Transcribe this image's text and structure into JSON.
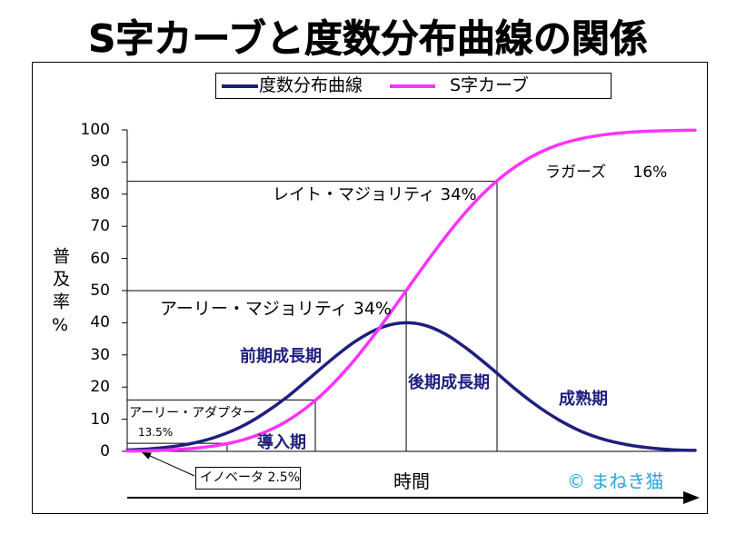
{
  "chart_data": {
    "type": "line",
    "title": "S字カーブと度数分布曲線の関係",
    "xlabel": "時間",
    "ylabel": "普及率%",
    "ylim": [
      0,
      100
    ],
    "yticks": [
      0,
      10,
      20,
      30,
      40,
      50,
      60,
      70,
      80,
      90,
      100
    ],
    "grid": false,
    "legend": "top",
    "series": [
      {
        "name": "度数分布曲線",
        "color": "#1f1f7f",
        "values": [
          0.4,
          0.8,
          1.5,
          2.7,
          4.7,
          7.6,
          11.7,
          16.7,
          22.6,
          28.6,
          34.0,
          38.0,
          39.9,
          39.4,
          36.5,
          31.7,
          26.0,
          19.9,
          14.4,
          9.8,
          6.2,
          3.7,
          2.1,
          1.1,
          0.5,
          0.3
        ]
      },
      {
        "name": "S字カーブ",
        "color": "#ff33ff",
        "values": [
          0.1,
          0.2,
          0.5,
          1.0,
          1.9,
          3.4,
          5.8,
          9.3,
          14.2,
          20.6,
          28.4,
          37.4,
          47.2,
          57.1,
          66.6,
          75.2,
          82.4,
          88.1,
          92.4,
          95.4,
          97.3,
          98.5,
          99.2,
          99.6,
          99.8,
          99.9
        ]
      }
    ],
    "segments": [
      {
        "label": "イノベータ 2.5%",
        "share": 2.5
      },
      {
        "label": "アーリー・アダプター",
        "share_label": "13.5%",
        "share": 13.5
      },
      {
        "label": "アーリー・マジョリティ 34%",
        "share": 34
      },
      {
        "label": "レイト・マジョリティ 34%",
        "share": 34
      },
      {
        "label": "ラガーズ 16%",
        "share": 16
      }
    ],
    "phases": [
      "導入期",
      "前期成長期",
      "後期成長期",
      "成熟期"
    ]
  },
  "credit": "© まねき猫",
  "colors": {
    "phase_labels": "#1f1f7f",
    "credit": "#29a6de"
  }
}
